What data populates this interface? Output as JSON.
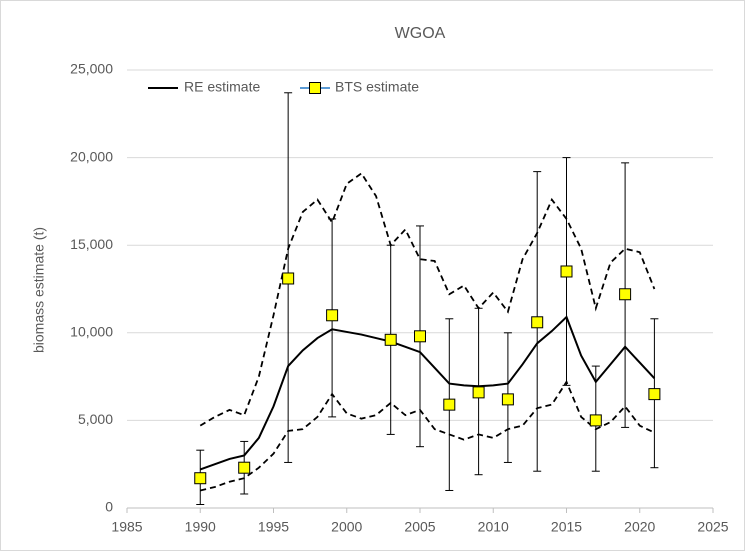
{
  "chart_data": {
    "type": "line",
    "title": "WGOA",
    "y_label": "biomass estimate (t)",
    "xlim": [
      1985,
      2025
    ],
    "xticks": [
      1985,
      1990,
      1995,
      2000,
      2005,
      2010,
      2015,
      2020,
      2025
    ],
    "ylim": [
      0,
      25000
    ],
    "yticks": [
      0,
      {
        "value": 5000,
        "label": "5,000"
      },
      {
        "value": 10000,
        "label": "10,000"
      },
      {
        "value": 15000,
        "label": "15,000"
      },
      {
        "value": 20000,
        "label": "20,000"
      },
      {
        "value": 25000,
        "label": "25,000"
      }
    ],
    "grid": "y",
    "legend": "top-left",
    "series": [
      {
        "name": "RE estimate",
        "color": "#000000",
        "style": "solid",
        "x": [
          1990,
          1991,
          1992,
          1993,
          1994,
          1995,
          1996,
          1997,
          1998,
          1999,
          2000,
          2001,
          2002,
          2003,
          2004,
          2005,
          2006,
          2007,
          2008,
          2009,
          2010,
          2011,
          2012,
          2013,
          2014,
          2015,
          2016,
          2017,
          2018,
          2019,
          2020,
          2021
        ],
        "values": [
          2200,
          2500,
          2800,
          3000,
          4000,
          5800,
          8100,
          9000,
          9700,
          10200,
          10050,
          9900,
          9700,
          9500,
          9200,
          8900,
          8000,
          7100,
          7000,
          6950,
          7000,
          7100,
          8200,
          9400,
          10100,
          10900,
          8700,
          7200,
          8200,
          9200,
          8300,
          7400
        ]
      },
      {
        "color": "#000000",
        "style": "dashed",
        "x": [
          1990,
          1991,
          1992,
          1993,
          1994,
          1995,
          1996,
          1997,
          1998,
          1999,
          2000,
          2001,
          2002,
          2003,
          2004,
          2005,
          2006,
          2007,
          2008,
          2009,
          2010,
          2011,
          2012,
          2013,
          2014,
          2015,
          2016,
          2017,
          2018,
          2019,
          2020,
          2021
        ],
        "values": [
          4700,
          5200,
          5600,
          5300,
          7500,
          11000,
          14800,
          16900,
          17600,
          16300,
          18500,
          19100,
          17800,
          15000,
          15900,
          14200,
          14100,
          12200,
          12700,
          11400,
          12300,
          11200,
          14200,
          15700,
          17600,
          16500,
          14800,
          11400,
          14000,
          14800,
          14600,
          12500
        ]
      },
      {
        "color": "#000000",
        "style": "dashed",
        "x": [
          1990,
          1991,
          1992,
          1993,
          1994,
          1995,
          1996,
          1997,
          1998,
          1999,
          2000,
          2001,
          2002,
          2003,
          2004,
          2005,
          2006,
          2007,
          2008,
          2009,
          2010,
          2011,
          2012,
          2013,
          2014,
          2015,
          2016,
          2017,
          2018,
          2019,
          2020,
          2021
        ],
        "values": [
          1000,
          1200,
          1500,
          1700,
          2300,
          3100,
          4400,
          4500,
          5200,
          6500,
          5400,
          5100,
          5300,
          6000,
          5300,
          5600,
          4500,
          4200,
          3900,
          4200,
          4000,
          4500,
          4700,
          5700,
          5900,
          7200,
          5200,
          4500,
          4900,
          5800,
          4700,
          4300
        ]
      },
      {
        "name": "BTS estimate",
        "color": "#ffff00",
        "edge_color": "#000000",
        "legend_line_color": "#5b9bd5",
        "marker": "square",
        "x": [
          1990,
          1993,
          1996,
          1999,
          2003,
          2005,
          2007,
          2009,
          2011,
          2013,
          2015,
          2017,
          2019,
          2021
        ],
        "values": [
          1700,
          2300,
          13100,
          11000,
          9600,
          9800,
          5900,
          6600,
          6200,
          10600,
          13500,
          5000,
          12200,
          6500
        ],
        "lower": [
          200,
          800,
          2600,
          5200,
          4200,
          3500,
          1000,
          1900,
          2600,
          2100,
          7000,
          2100,
          4600,
          2300
        ],
        "upper": [
          3300,
          3800,
          23700,
          16500,
          15000,
          16100,
          10800,
          11400,
          10000,
          19200,
          20000,
          8100,
          19700,
          10800
        ]
      }
    ]
  }
}
